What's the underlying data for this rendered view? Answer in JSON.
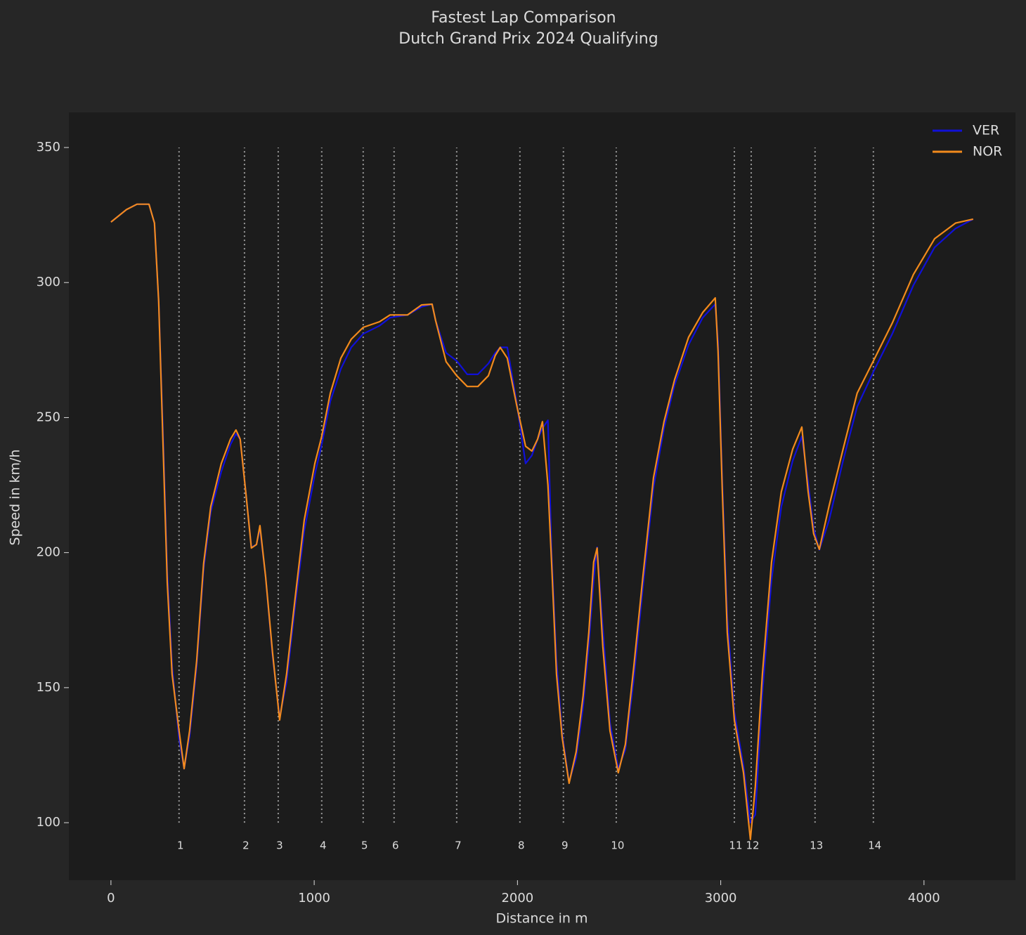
{
  "chart_data": {
    "type": "line",
    "title": "Fastest Lap Comparison",
    "subtitle": "Dutch Grand Prix 2024 Qualifying",
    "x_label": "Distance in m",
    "y_label": "Speed in km/h",
    "xlim": [
      -207,
      4450
    ],
    "ylim": [
      78.7,
      363
    ],
    "xticks": [
      0,
      1000,
      2000,
      3000,
      4000
    ],
    "yticks": [
      100,
      150,
      200,
      250,
      300,
      350
    ],
    "grid": false,
    "legend": "upper right",
    "x": [
      0,
      76,
      128,
      187,
      214,
      235,
      256,
      277,
      301,
      335,
      360,
      387,
      422,
      456,
      491,
      543,
      588,
      615,
      636,
      664,
      691,
      716,
      733,
      761,
      795,
      830,
      864,
      906,
      951,
      1003,
      1037,
      1079,
      1131,
      1182,
      1241,
      1321,
      1373,
      1459,
      1528,
      1580,
      1597,
      1649,
      1701,
      1753,
      1805,
      1857,
      1891,
      1915,
      1950,
      1995,
      2040,
      2071,
      2099,
      2123,
      2150,
      2168,
      2192,
      2220,
      2254,
      2289,
      2323,
      2351,
      2375,
      2392,
      2420,
      2455,
      2496,
      2531,
      2572,
      2617,
      2669,
      2721,
      2773,
      2842,
      2911,
      2973,
      2987,
      3008,
      3032,
      3067,
      3112,
      3146,
      3170,
      3205,
      3250,
      3298,
      3354,
      3399,
      3430,
      3457,
      3485,
      3533,
      3602,
      3671,
      3758,
      3844,
      3948,
      4052,
      4155,
      4242
    ],
    "series": [
      {
        "name": "VER",
        "color": "#1010d8",
        "values": [
          322.4,
          327,
          329,
          329,
          322,
          293,
          245,
          193,
          158,
          131,
          120,
          132,
          158,
          194,
          215,
          230,
          240,
          244,
          242,
          222,
          202,
          203,
          209,
          191,
          162,
          139,
          152,
          180,
          208,
          229,
          240,
          256,
          268,
          276,
          281,
          284,
          287,
          288,
          291,
          292,
          286,
          274,
          271,
          266,
          266,
          270,
          274,
          276,
          276,
          256,
          233,
          236,
          242,
          246,
          249,
          200,
          160,
          133,
          115,
          124,
          143,
          166,
          190,
          202,
          172,
          137,
          120,
          127,
          153,
          187,
          224,
          246,
          262,
          277,
          287,
          292,
          278,
          226,
          176,
          141,
          121,
          100,
          103,
          148,
          190,
          217,
          234,
          243,
          226,
          209,
          201,
          212,
          234,
          254,
          268,
          281,
          299,
          313,
          320,
          323.5
        ]
      },
      {
        "name": "NOR",
        "color": "#f28a1c",
        "values": [
          322.4,
          327,
          329,
          329,
          322,
          293,
          241,
          189,
          155,
          134,
          120,
          134,
          160,
          196,
          217,
          233,
          242,
          245.4,
          242,
          222,
          201.7,
          203,
          210,
          191,
          163,
          138,
          155,
          183,
          212,
          233,
          243,
          259,
          272,
          279,
          283.4,
          285.5,
          288,
          288,
          291.7,
          292,
          286,
          270.7,
          265.5,
          261.5,
          261.5,
          265.5,
          273,
          276,
          272,
          255,
          239.4,
          237.6,
          242,
          248.5,
          225,
          196.5,
          155,
          131.5,
          114.6,
          126.3,
          147,
          170.5,
          196.5,
          201.7,
          165.3,
          134,
          118.5,
          129,
          157.5,
          191,
          227.7,
          248.5,
          264,
          279.8,
          288.9,
          294.3,
          274.5,
          222.5,
          170.5,
          138,
          118.5,
          93.8,
          113.3,
          155,
          196.5,
          222.5,
          238.3,
          246.5,
          222.5,
          207,
          201.2,
          217.3,
          238.3,
          259,
          272,
          285,
          303,
          316.2,
          322,
          323.5
        ]
      }
    ],
    "corners": [
      {
        "number": 1,
        "distance": 335
      },
      {
        "number": 2,
        "distance": 657
      },
      {
        "number": 3,
        "distance": 823
      },
      {
        "number": 4,
        "distance": 1037
      },
      {
        "number": 5,
        "distance": 1241
      },
      {
        "number": 6,
        "distance": 1393
      },
      {
        "number": 7,
        "distance": 1701
      },
      {
        "number": 8,
        "distance": 2012
      },
      {
        "number": 9,
        "distance": 2226
      },
      {
        "number": 10,
        "distance": 2486
      },
      {
        "number": 11,
        "distance": 3067
      },
      {
        "number": 12,
        "distance": 3150
      },
      {
        "number": 13,
        "distance": 3464
      },
      {
        "number": 14,
        "distance": 3751
      }
    ]
  }
}
